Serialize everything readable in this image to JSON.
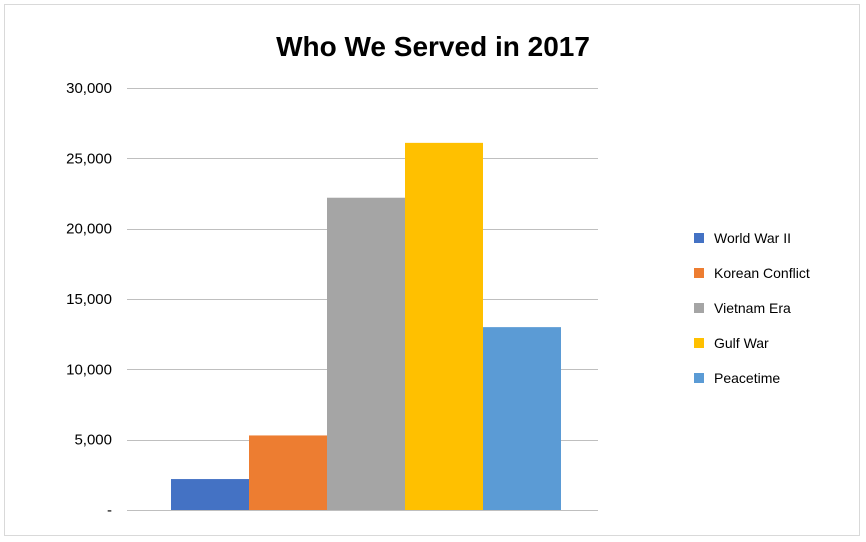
{
  "chart_data": {
    "type": "bar",
    "title": "Who We Served in 2017",
    "xlabel": "",
    "ylabel": "",
    "categories": [
      "World War II",
      "Korean Conflict",
      "Vietnam Era",
      "Gulf War",
      "Peacetime"
    ],
    "values": [
      2200,
      5300,
      22200,
      26100,
      13000
    ],
    "colors": [
      "#4472c4",
      "#ed7d31",
      "#a5a5a5",
      "#ffc000",
      "#5b9bd5"
    ],
    "ylim": [
      0,
      30000
    ],
    "yticks": [
      0,
      5000,
      10000,
      15000,
      20000,
      25000,
      30000
    ],
    "ytick_labels": [
      "-",
      "5,000",
      "10,000",
      "15,000",
      "20,000",
      "25,000",
      "30,000"
    ],
    "grid": true,
    "legend_position": "right",
    "gridline_color": "#bfbfbf"
  }
}
